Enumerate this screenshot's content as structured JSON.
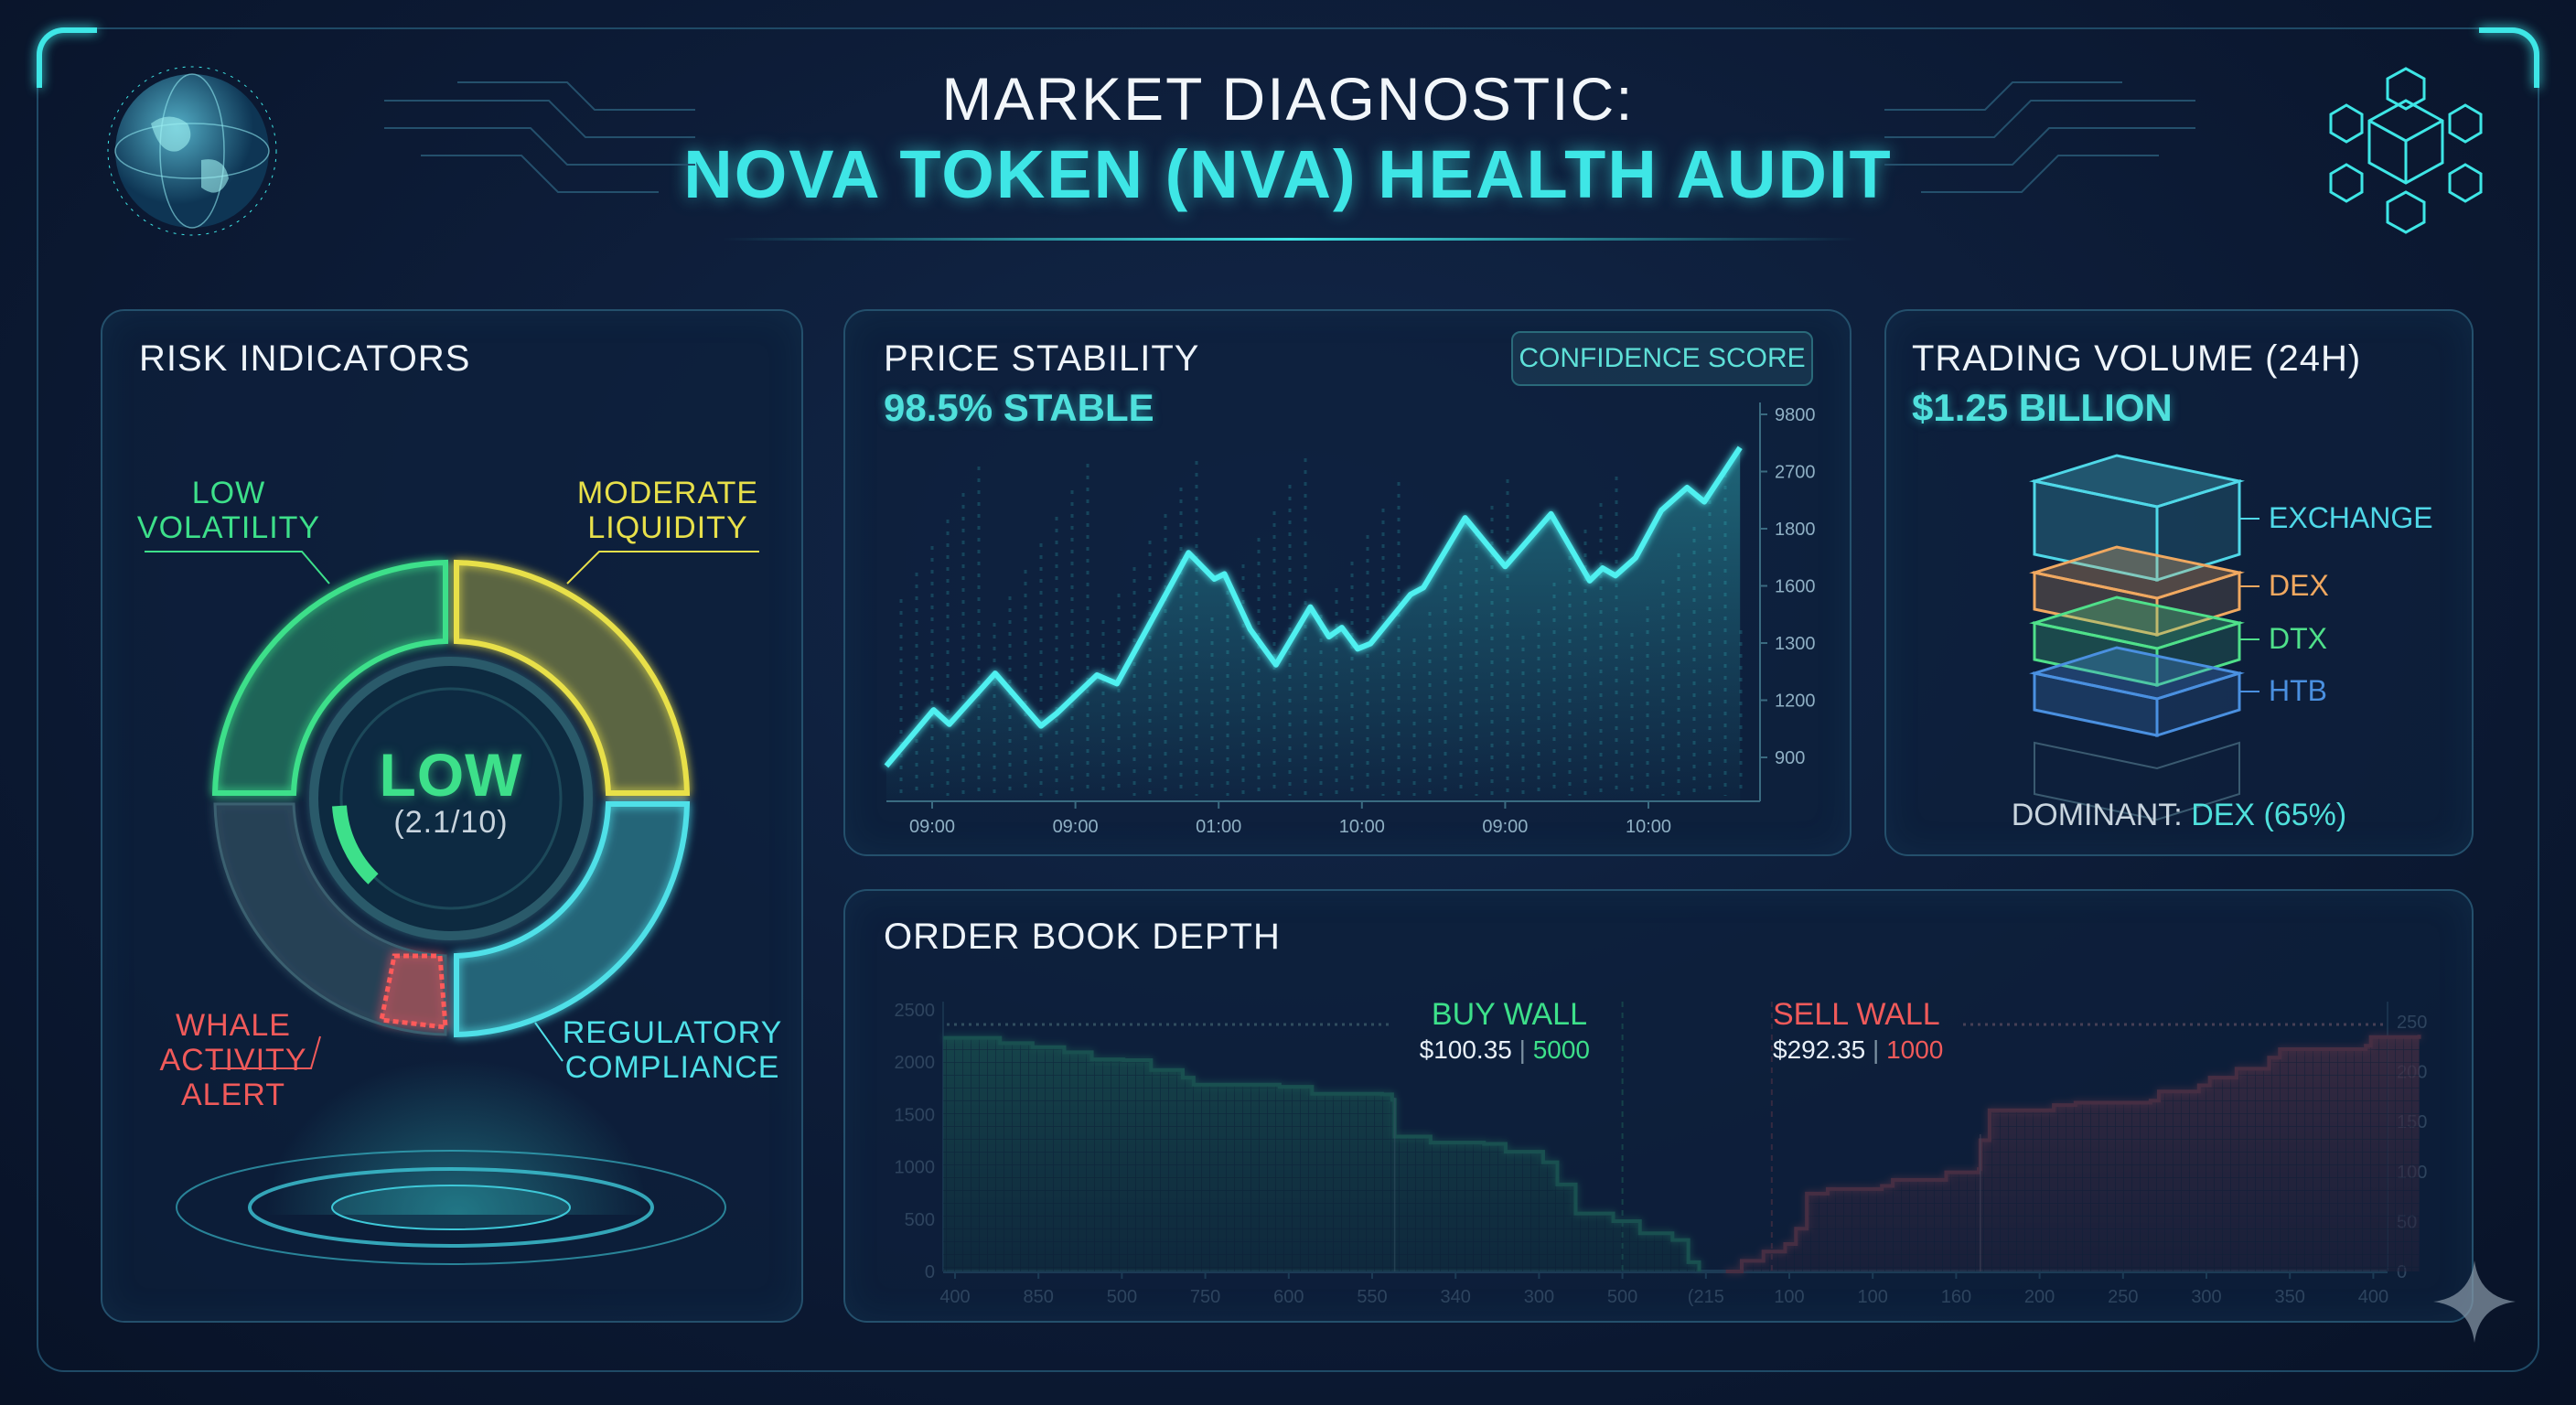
{
  "header": {
    "line1": "MARKET DIAGNOSTIC:",
    "line2": "NOVA TOKEN (NVA) HEALTH AUDIT"
  },
  "risk": {
    "title": "RISK INDICATORS",
    "center_label": "LOW",
    "center_score": "(2.1/10)",
    "score_value": 2.1,
    "score_max": 10,
    "segments": [
      {
        "label_line1": "LOW",
        "label_line2": "VOLATILITY",
        "color": "#3de08a"
      },
      {
        "label_line1": "MODERATE",
        "label_line2": "LIQUIDITY",
        "color": "#e8e04a"
      },
      {
        "label_line1": "REGULATORY",
        "label_line2": "COMPLIANCE",
        "color": "#4fe0e8"
      },
      {
        "label_line1": "WHALE",
        "label_line2": "ACTIVITY",
        "label_line3": "ALERT",
        "color": "#f05a5a"
      }
    ]
  },
  "price": {
    "title": "PRICE STABILITY",
    "subtitle": "98.5% STABLE",
    "badge": "CONFIDENCE SCORE"
  },
  "volume": {
    "title": "TRADING VOLUME (24H)",
    "amount": "$1.25 BILLION",
    "layers": [
      {
        "label": "EXCHANGE",
        "color": "#4fd8e8"
      },
      {
        "label": "DEX",
        "color": "#f0a860"
      },
      {
        "label": "DTX",
        "color": "#4fe08a"
      },
      {
        "label": "HTB",
        "color": "#4a90e0"
      }
    ],
    "dominant_prefix": "DOMINANT:",
    "dominant_value": "DEX (65%)"
  },
  "orderbook": {
    "title": "ORDER BOOK DEPTH",
    "buy_wall": {
      "label": "BUY WALL",
      "price": "$100.35",
      "qty": "5000"
    },
    "sell_wall": {
      "label": "SELL WALL",
      "price": "$292.35",
      "qty": "1000"
    }
  },
  "chart_data": [
    {
      "type": "line",
      "title": "PRICE STABILITY",
      "x_tick_labels": [
        "09:00",
        "09:00",
        "01:00",
        "10:00",
        "09:00",
        "10:00"
      ],
      "y_tick_labels": [
        "900",
        "1200",
        "1300",
        "1600",
        "1800",
        "2700",
        "9800"
      ],
      "note": "x and y values expressed in tick-index units (0 = first tick label)",
      "series": [
        {
          "name": "price",
          "color": "#4ff0f0",
          "x": [
            -0.32,
            0.01,
            0.12,
            0.44,
            0.6,
            0.76,
            0.87,
            1.15,
            1.29,
            1.47,
            1.79,
            1.97,
            2.04,
            2.22,
            2.4,
            2.64,
            2.77,
            2.86,
            2.97,
            3.06,
            3.34,
            3.43,
            3.72,
            4.0,
            4.32,
            4.59,
            4.68,
            4.77,
            4.91,
            5.09,
            5.27,
            5.39,
            5.64
          ],
          "y": [
            -0.15,
            0.83,
            0.58,
            1.47,
            1.01,
            0.55,
            0.77,
            1.44,
            1.29,
            2.11,
            3.58,
            3.12,
            3.21,
            2.24,
            1.62,
            2.63,
            2.11,
            2.27,
            1.9,
            1.99,
            2.85,
            2.97,
            4.19,
            3.34,
            4.26,
            3.09,
            3.31,
            3.18,
            3.49,
            4.32,
            4.72,
            4.47,
            5.42
          ]
        }
      ]
    },
    {
      "type": "area",
      "title": "ORDER BOOK DEPTH",
      "x_tick_labels": [
        "400",
        "850",
        "500",
        "750",
        "600",
        "550",
        "340",
        "300",
        "500",
        "(215",
        "100",
        "100",
        "160",
        "200",
        "250",
        "300",
        "350",
        "400"
      ],
      "y_left_ticks": [
        0,
        500,
        1000,
        1500,
        2000,
        2500
      ],
      "y_right_ticks": [
        0,
        50,
        100,
        150,
        200,
        250
      ],
      "ylim_left": [
        0,
        2500
      ],
      "ylim_right": [
        0,
        250
      ],
      "note": "x in tick-index units",
      "series": [
        {
          "name": "buy",
          "axis": "left",
          "color": "#3de08a",
          "x": [
            -0.14,
            0.41,
            0.54,
            0.93,
            1.31,
            1.64,
            2.02,
            2.35,
            2.73,
            2.86,
            3.89,
            4.28,
            5.12,
            5.24,
            5.27,
            5.7,
            6.34,
            6.6,
            7.05,
            7.22,
            7.44,
            7.89,
            8.21,
            8.6,
            8.79,
            8.92
          ],
          "y": [
            2232,
            2232,
            2182,
            2144,
            2095,
            2027,
            2019,
            1925,
            1852,
            1785,
            1765,
            1698,
            1692,
            1640,
            1289,
            1231,
            1219,
            1144,
            1044,
            831,
            554,
            481,
            365,
            300,
            88,
            0
          ]
        },
        {
          "name": "sell",
          "axis": "right",
          "color": "#f05a5a",
          "x": [
            9.24,
            9.43,
            9.69,
            9.95,
            10.08,
            10.21,
            10.46,
            11.11,
            11.24,
            11.88,
            12.27,
            12.29,
            12.4,
            13.17,
            13.43,
            14.33,
            14.43,
            14.91,
            15.04,
            15.36,
            15.75,
            15.88,
            16.91,
            16.97,
            17.55
          ],
          "y": [
            0,
            10.7,
            19.9,
            27.5,
            42.8,
            77.9,
            82.5,
            85.6,
            91.7,
            99.3,
            102.4,
            131.4,
            161.4,
            166.6,
            169,
            171,
            180.2,
            186.4,
            194,
            203,
            214,
            222.5,
            226,
            234.7,
            236.9
          ]
        }
      ],
      "markers": {
        "buy_wall_x": 8.0,
        "sell_wall_x": 9.79,
        "buy_solid_x": 5.27,
        "sell_solid_x": 12.29
      }
    }
  ]
}
